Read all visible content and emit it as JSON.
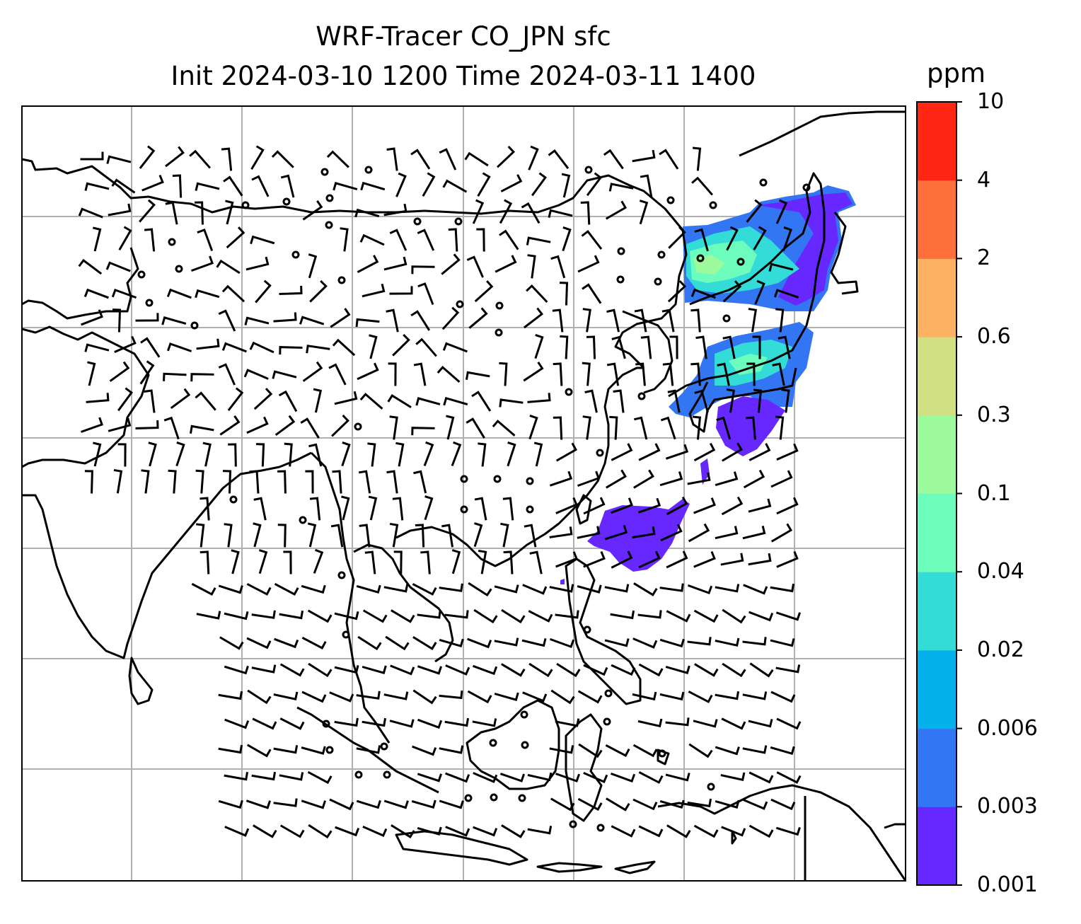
{
  "title": {
    "line1": "WRF-Tracer CO_JPN sfc",
    "line2": "Init 2024-03-10 1200 Time 2024-03-11 1400"
  },
  "colorbar": {
    "unit": "ppm",
    "levels": [
      "0.001",
      "0.003",
      "0.006",
      "0.02",
      "0.04",
      "0.1",
      "0.3",
      "0.6",
      "2",
      "4",
      "10"
    ],
    "colors": [
      "#6628ff",
      "#3276f3",
      "#04b1ea",
      "#33dcd6",
      "#6cfdbd",
      "#9cfa9c",
      "#d0e083",
      "#fdb163",
      "#ff6f3c",
      "#ff2714"
    ]
  },
  "map": {
    "frame_color": "#000000",
    "grid_color": "#b0b0b0",
    "coastline_color": "#000000",
    "barb_color": "#000000",
    "plume_colors": {
      "low": "#6628ff",
      "mid": "#3276f3",
      "cyan": "#33dcd6",
      "green": "#6cfdbd",
      "lightgreen": "#9cfa9c"
    }
  }
}
